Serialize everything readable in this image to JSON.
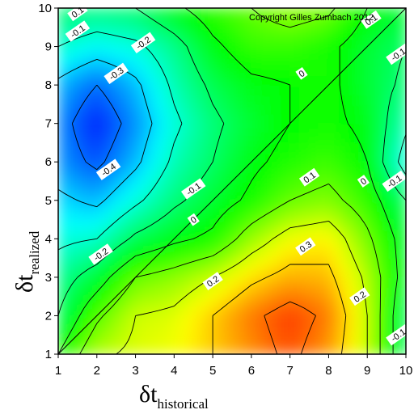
{
  "chart_data": {
    "type": "heatmap",
    "subtype": "filled-contour",
    "title": "",
    "copyright": "Copyright Gilles Zumbach 2012",
    "xlabel": {
      "main": "δt",
      "subscript": "historical"
    },
    "ylabel": {
      "main": "δt",
      "subscript": "realized"
    },
    "xlim": [
      1,
      10
    ],
    "ylim": [
      1,
      10
    ],
    "x_ticks": [
      "1",
      "2",
      "3",
      "4",
      "5",
      "6",
      "7",
      "8",
      "9",
      "10"
    ],
    "y_ticks": [
      "1",
      "2",
      "3",
      "4",
      "5",
      "6",
      "7",
      "8",
      "9",
      "10"
    ],
    "x": [
      1,
      2,
      3,
      4,
      5,
      6,
      7,
      8,
      9,
      10
    ],
    "y": [
      1,
      2,
      3,
      4,
      5,
      6,
      7,
      8,
      9,
      10
    ],
    "z": [
      [
        0.0,
        0.18,
        0.22,
        0.24,
        0.3,
        0.36,
        0.42,
        0.35,
        0.2,
        -0.1
      ],
      [
        -0.1,
        0.08,
        0.2,
        0.22,
        0.3,
        0.38,
        0.44,
        0.38,
        0.2,
        -0.1
      ],
      [
        -0.15,
        -0.05,
        0.1,
        0.14,
        0.2,
        0.28,
        0.33,
        0.32,
        0.18,
        -0.05
      ],
      [
        -0.22,
        -0.2,
        -0.08,
        -0.02,
        0.02,
        0.15,
        0.24,
        0.26,
        0.12,
        -0.05
      ],
      [
        -0.28,
        -0.32,
        -0.22,
        -0.12,
        -0.05,
        0.02,
        0.1,
        0.13,
        0.05,
        -0.1
      ],
      [
        -0.35,
        -0.42,
        -0.32,
        -0.18,
        -0.1,
        -0.02,
        0.03,
        0.06,
        0.0,
        -0.25
      ],
      [
        -0.36,
        -0.47,
        -0.36,
        -0.22,
        -0.12,
        -0.05,
        0.0,
        0.02,
        -0.02,
        -0.18
      ],
      [
        -0.32,
        -0.4,
        -0.32,
        -0.18,
        -0.08,
        -0.02,
        0.0,
        0.02,
        -0.05,
        -0.12
      ],
      [
        -0.2,
        -0.25,
        -0.22,
        -0.14,
        -0.02,
        0.05,
        0.05,
        0.02,
        -0.05,
        -0.1
      ],
      [
        -0.1,
        -0.12,
        -0.1,
        -0.02,
        0.05,
        0.1,
        0.15,
        0.12,
        0.0,
        -0.05
      ]
    ],
    "colorscale": "rainbow (blue = low, red = high)",
    "zlim": [
      -0.5,
      0.5
    ],
    "diagonal_line": true,
    "contour_labels": [
      {
        "text": "0.1",
        "x": 1.5,
        "y": 9.9
      },
      {
        "text": "-0.1",
        "x": 1.5,
        "y": 9.4
      },
      {
        "text": "-0.2",
        "x": 3.2,
        "y": 9.1
      },
      {
        "text": "-0.3",
        "x": 2.5,
        "y": 8.3
      },
      {
        "text": "-0.4",
        "x": 2.3,
        "y": 5.8
      },
      {
        "text": "-0.1",
        "x": 4.5,
        "y": 5.3
      },
      {
        "text": "0",
        "x": 4.5,
        "y": 4.5
      },
      {
        "text": "-0.2",
        "x": 2.1,
        "y": 3.6
      },
      {
        "text": "0.2",
        "x": 5.0,
        "y": 2.9
      },
      {
        "text": "0.3",
        "x": 7.4,
        "y": 3.8
      },
      {
        "text": "0.1",
        "x": 7.5,
        "y": 5.6
      },
      {
        "text": "0",
        "x": 7.3,
        "y": 8.3
      },
      {
        "text": "0",
        "x": 8.9,
        "y": 5.5
      },
      {
        "text": "-0.1",
        "x": 9.7,
        "y": 5.5
      },
      {
        "text": "0.2",
        "x": 8.8,
        "y": 2.5
      },
      {
        "text": "-0.1",
        "x": 9.8,
        "y": 1.5
      },
      {
        "text": "0.1",
        "x": 9.1,
        "y": 9.7
      },
      {
        "text": "-0.1",
        "x": 9.8,
        "y": 8.8
      }
    ]
  }
}
